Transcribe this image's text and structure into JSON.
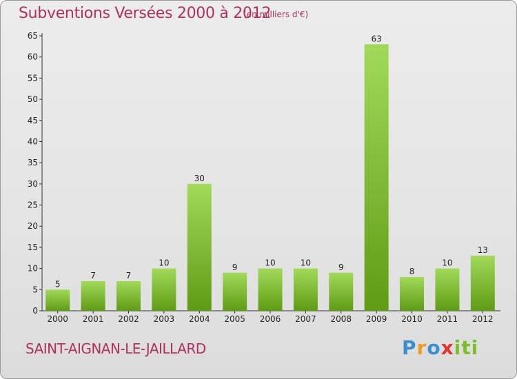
{
  "header": {
    "title": "Subventions Versées 2000 à 2012",
    "subtitle": "(en milliers d'€)"
  },
  "footer": {
    "location": "SAINT-AIGNAN-LE-JAILLARD",
    "logo": "Proxiti"
  },
  "colors": {
    "accent": "#b03060",
    "bar_light": "#9fd656",
    "bar_dark": "#5e9a12"
  },
  "chart_data": {
    "type": "bar",
    "title": "Subventions Versées 2000 à 2012",
    "subtitle": "(en milliers d'€)",
    "categories": [
      "2000",
      "2001",
      "2002",
      "2003",
      "2004",
      "2005",
      "2006",
      "2007",
      "2008",
      "2009",
      "2010",
      "2011",
      "2012"
    ],
    "values": [
      5,
      7,
      7,
      10,
      30,
      9,
      10,
      10,
      9,
      63,
      8,
      10,
      13
    ],
    "xlabel": "",
    "ylabel": "",
    "ylim": [
      0,
      65
    ],
    "yticks": [
      0,
      5,
      10,
      15,
      20,
      25,
      30,
      35,
      40,
      45,
      50,
      55,
      60,
      65
    ],
    "grid": false,
    "data_labels": true
  }
}
